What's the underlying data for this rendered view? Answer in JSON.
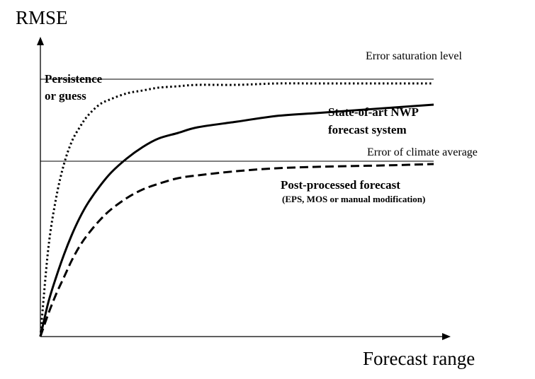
{
  "chart_data": {
    "type": "line",
    "title": "",
    "xlabel": "Forecast range",
    "ylabel": "RMSE",
    "grid": false,
    "legend": "none",
    "xlim": [
      0,
      100
    ],
    "ylim": [
      0,
      100
    ],
    "reference_lines": [
      {
        "name": "Error saturation level",
        "y": 91
      },
      {
        "name": "Error of climate average",
        "y": 62
      }
    ],
    "series": [
      {
        "name": "Persistence or guess",
        "style": "dotted",
        "x": [
          0,
          2,
          4,
          6,
          8,
          10,
          12,
          15,
          18,
          22,
          26,
          30,
          35,
          40,
          50,
          60,
          70,
          80,
          90,
          100
        ],
        "values": [
          0,
          31,
          49,
          61,
          69,
          74,
          78,
          82,
          84,
          86,
          87,
          88,
          88.5,
          89,
          89,
          89.5,
          89.5,
          89.5,
          89.5,
          89.5
        ]
      },
      {
        "name": "State-of-art NWP forecast system",
        "style": "solid",
        "x": [
          0,
          2,
          4,
          6,
          8,
          10,
          12,
          15,
          18,
          22,
          26,
          30,
          35,
          40,
          50,
          60,
          70,
          80,
          90,
          100
        ],
        "values": [
          0,
          12,
          21,
          29,
          36,
          42,
          47,
          53,
          58,
          63,
          67,
          70,
          72,
          74,
          76,
          78,
          79,
          80,
          81,
          82
        ]
      },
      {
        "name": "Post-processed forecast",
        "style": "dashed",
        "x": [
          0,
          2,
          4,
          6,
          8,
          10,
          12,
          15,
          18,
          22,
          26,
          30,
          35,
          40,
          50,
          60,
          70,
          80,
          90,
          100
        ],
        "values": [
          0,
          8,
          15,
          21,
          27,
          32,
          36,
          41,
          45,
          49,
          52,
          54,
          56,
          57,
          58.5,
          59.5,
          60,
          60.3,
          60.6,
          61
        ]
      }
    ],
    "annotations": {
      "persistence_line1": "Persistence",
      "persistence_line2": "or  guess",
      "nwp_line1": "State-of-art NWP",
      "nwp_line2": "forecast system",
      "post_line1": "Post-processed forecast",
      "post_line2": "(EPS, MOS or manual modification)"
    }
  }
}
